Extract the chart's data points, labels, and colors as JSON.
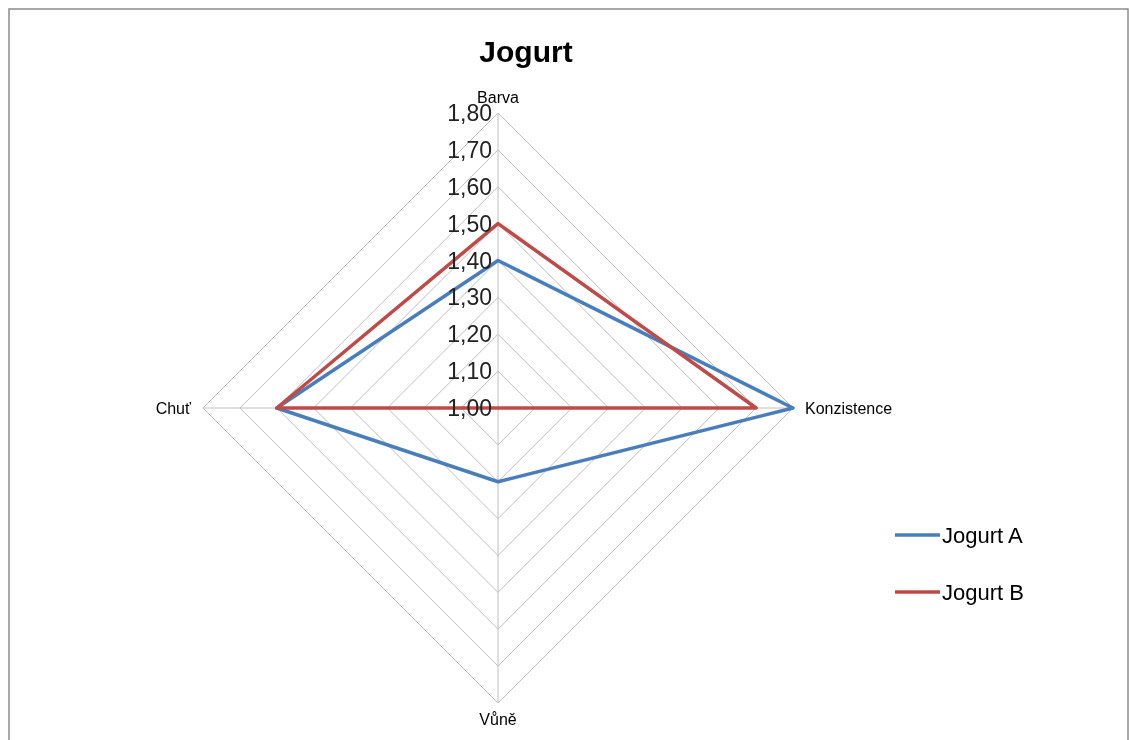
{
  "chart_data": {
    "type": "radar",
    "title": "Jogurt",
    "categories": [
      "Barva",
      "Konzistence",
      "Vůně",
      "Chuť"
    ],
    "series": [
      {
        "name": "Jogurt A",
        "color": "#4a7ebb",
        "values": [
          1.4,
          1.8,
          1.2,
          1.6
        ]
      },
      {
        "name": "Jogurt B",
        "color": "#be4b48",
        "values": [
          1.5,
          1.7,
          1.0,
          1.6
        ]
      }
    ],
    "ylim": [
      1.0,
      1.8
    ],
    "yticks": [
      {
        "value": 1.0,
        "label": "1,00"
      },
      {
        "value": 1.1,
        "label": "1,10"
      },
      {
        "value": 1.2,
        "label": "1,20"
      },
      {
        "value": 1.3,
        "label": "1,30"
      },
      {
        "value": 1.4,
        "label": "1,40"
      },
      {
        "value": 1.5,
        "label": "1,50"
      },
      {
        "value": 1.6,
        "label": "1,60"
      },
      {
        "value": 1.7,
        "label": "1,70"
      },
      {
        "value": 1.8,
        "label": "1,80"
      }
    ],
    "grid": true,
    "legend": "right",
    "line_style": "solid",
    "marker": "none"
  }
}
